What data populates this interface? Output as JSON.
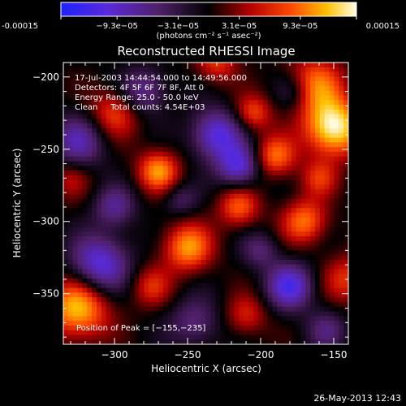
{
  "colorbar": {
    "ticks": [
      "-0.00015",
      "−9.3e−05",
      "−3.1e−05",
      "3.1e−05",
      "9.3e−05",
      "0.00015"
    ],
    "tick_values": [
      -0.00015,
      -9.3e-05,
      -3.1e-05,
      3.1e-05,
      9.3e-05,
      0.00015
    ],
    "range": [
      -0.00015,
      0.00015
    ],
    "units": "(photons cm⁻² s⁻¹ asec⁻²)"
  },
  "chart_data": {
    "type": "heatmap",
    "title": "Reconstructed RHESSI Image",
    "xlabel": "Heliocentric X (arcsec)",
    "ylabel": "Heliocentric Y (arcsec)",
    "xlim": [
      -335,
      -140
    ],
    "ylim": [
      -385,
      -190
    ],
    "xticks": [
      -300,
      -250,
      -200,
      -150
    ],
    "yticks": [
      -200,
      -250,
      -300,
      -350
    ],
    "xtick_labels": [
      "−300",
      "−250",
      "−200",
      "−150"
    ],
    "ytick_labels": [
      "−200",
      "−250",
      "−300",
      "−350"
    ],
    "colormap": "blue-purple-black-red-yellow-white",
    "annotations": [
      "17-Jul-2003 14:44:54.000 to 14:49:56.000",
      "Detectors: 4F 5F 6F 7F 8F, Att 0",
      "Energy Range: 25.0 - 50.0 keV",
      "Clean     Total counts: 4.54E+03"
    ],
    "peak_label": "Position of Peak = [−155,−235]",
    "peak": [
      -155,
      -235
    ],
    "blobs": [
      {
        "x": -150,
        "y": -235,
        "v": 1.0,
        "s": 14
      },
      {
        "x": -163,
        "y": -205,
        "v": 0.6,
        "s": 14
      },
      {
        "x": -325,
        "y": -360,
        "v": 0.82,
        "s": 15
      },
      {
        "x": -270,
        "y": -265,
        "v": 0.7,
        "s": 10
      },
      {
        "x": -250,
        "y": -318,
        "v": 0.7,
        "s": 12
      },
      {
        "x": -170,
        "y": -300,
        "v": 0.62,
        "s": 11
      },
      {
        "x": -190,
        "y": -255,
        "v": 0.6,
        "s": 10
      },
      {
        "x": -215,
        "y": -290,
        "v": 0.55,
        "s": 10
      },
      {
        "x": -140,
        "y": -340,
        "v": 0.45,
        "s": 12
      },
      {
        "x": -300,
        "y": -225,
        "v": 0.5,
        "s": 12
      },
      {
        "x": -230,
        "y": -190,
        "v": 0.45,
        "s": 10
      },
      {
        "x": -205,
        "y": -225,
        "v": 0.5,
        "s": 9
      },
      {
        "x": -160,
        "y": -270,
        "v": 0.4,
        "s": 9
      },
      {
        "x": -275,
        "y": -345,
        "v": 0.4,
        "s": 10
      },
      {
        "x": -210,
        "y": -365,
        "v": 0.4,
        "s": 10
      },
      {
        "x": -330,
        "y": -270,
        "v": 0.3,
        "s": 10
      },
      {
        "x": -230,
        "y": -240,
        "v": -0.75,
        "s": 12
      },
      {
        "x": -215,
        "y": -262,
        "v": -0.7,
        "s": 10
      },
      {
        "x": -310,
        "y": -330,
        "v": -0.75,
        "s": 14
      },
      {
        "x": -325,
        "y": -245,
        "v": -0.55,
        "s": 13
      },
      {
        "x": -280,
        "y": -210,
        "v": -0.5,
        "s": 11
      },
      {
        "x": -180,
        "y": -345,
        "v": -0.75,
        "s": 11
      },
      {
        "x": -300,
        "y": -290,
        "v": -0.45,
        "s": 10
      },
      {
        "x": -245,
        "y": -370,
        "v": -0.4,
        "s": 12
      },
      {
        "x": -200,
        "y": -320,
        "v": -0.35,
        "s": 9
      },
      {
        "x": -155,
        "y": -375,
        "v": -0.35,
        "s": 10
      },
      {
        "x": -255,
        "y": -285,
        "v": -0.3,
        "s": 8
      },
      {
        "x": -178,
        "y": -210,
        "v": -0.3,
        "s": 9
      }
    ]
  },
  "timestamp": "26-May-2013 12:43"
}
